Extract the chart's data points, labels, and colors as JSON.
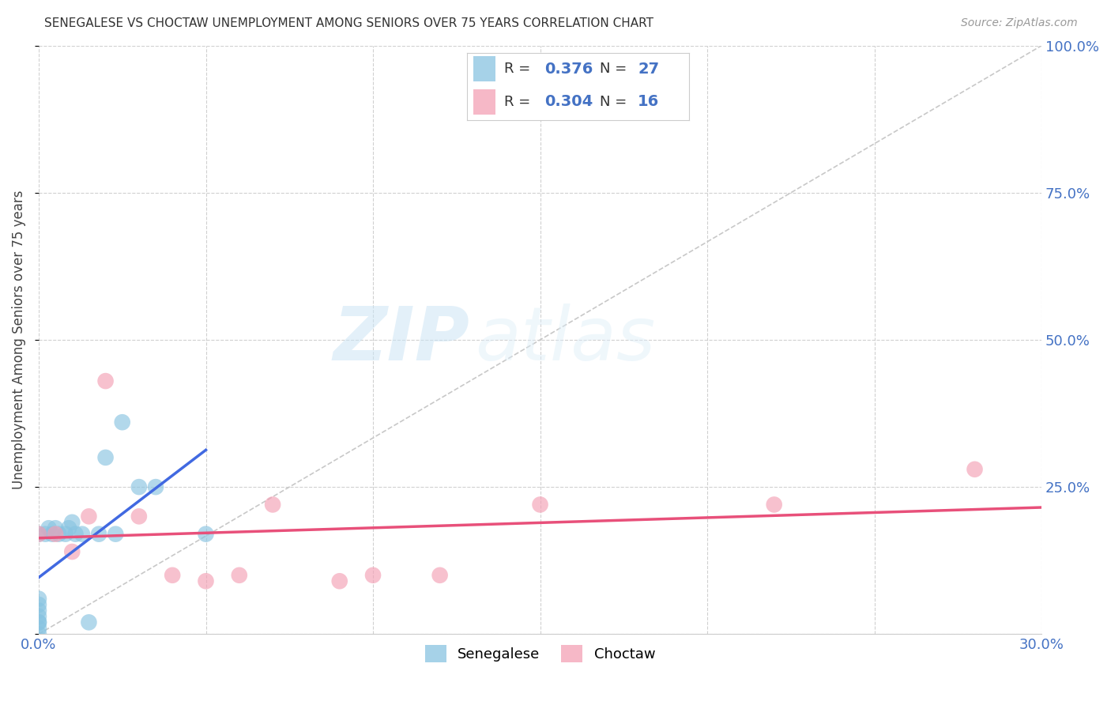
{
  "title": "SENEGALESE VS CHOCTAW UNEMPLOYMENT AMONG SENIORS OVER 75 YEARS CORRELATION CHART",
  "source": "Source: ZipAtlas.com",
  "tick_color": "#4472c4",
  "ylabel": "Unemployment Among Seniors over 75 years",
  "xlim": [
    0.0,
    0.3
  ],
  "ylim": [
    0.0,
    1.0
  ],
  "senegalese_color": "#89C4E1",
  "choctaw_color": "#F4A0B5",
  "trend_senegalese_color": "#4169E1",
  "trend_choctaw_color": "#E8507A",
  "diagonal_color": "#c8c8c8",
  "watermark_zip": "ZIP",
  "watermark_atlas": "atlas",
  "legend_R_senegalese": "0.376",
  "legend_N_senegalese": "27",
  "legend_R_choctaw": "0.304",
  "legend_N_choctaw": "16",
  "sen_x": [
    0.0,
    0.0,
    0.0,
    0.0,
    0.0,
    0.0,
    0.0,
    0.0,
    0.0,
    0.002,
    0.003,
    0.004,
    0.005,
    0.006,
    0.008,
    0.009,
    0.01,
    0.011,
    0.013,
    0.015,
    0.018,
    0.02,
    0.023,
    0.025,
    0.03,
    0.035,
    0.05
  ],
  "sen_y": [
    0.0,
    0.01,
    0.02,
    0.02,
    0.03,
    0.04,
    0.05,
    0.06,
    0.17,
    0.17,
    0.18,
    0.17,
    0.18,
    0.17,
    0.17,
    0.18,
    0.19,
    0.17,
    0.17,
    0.02,
    0.17,
    0.3,
    0.17,
    0.36,
    0.25,
    0.25,
    0.17
  ],
  "cho_x": [
    0.0,
    0.005,
    0.01,
    0.015,
    0.02,
    0.03,
    0.04,
    0.05,
    0.06,
    0.07,
    0.09,
    0.1,
    0.12,
    0.15,
    0.22,
    0.28
  ],
  "cho_y": [
    0.17,
    0.17,
    0.14,
    0.2,
    0.43,
    0.2,
    0.1,
    0.09,
    0.1,
    0.22,
    0.09,
    0.1,
    0.1,
    0.22,
    0.22,
    0.28
  ]
}
